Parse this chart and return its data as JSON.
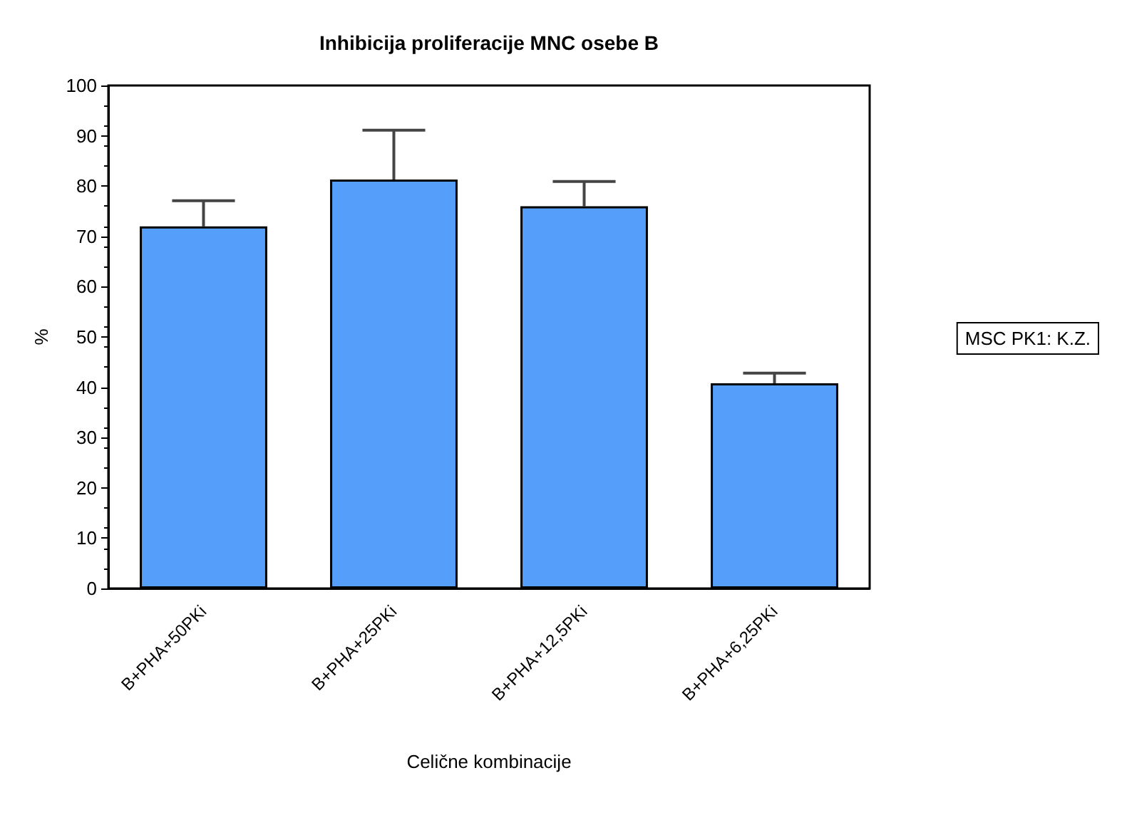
{
  "chart_data": {
    "type": "bar",
    "title": "Inhibicija proliferacije MNC osebe B",
    "xlabel": "Celične kombinacije",
    "ylabel": "%",
    "categories": [
      "B+PHA+50PKi",
      "B+PHA+25PKi",
      "B+PHA+12,5PKi",
      "B+PHA+6,25PKi"
    ],
    "values": [
      72,
      81.3,
      76,
      40.8
    ],
    "errors": [
      [
        72,
        77.1
      ],
      [
        81.3,
        91.1
      ],
      [
        76,
        80.9
      ],
      [
        40.8,
        42.8
      ]
    ],
    "color": "#559ffa",
    "ylim": [
      0,
      100
    ],
    "yticks": [
      0,
      10,
      20,
      30,
      40,
      50,
      60,
      70,
      80,
      90,
      100
    ],
    "grid": false,
    "annotations": [
      "MSC PK1: K.Z."
    ]
  }
}
